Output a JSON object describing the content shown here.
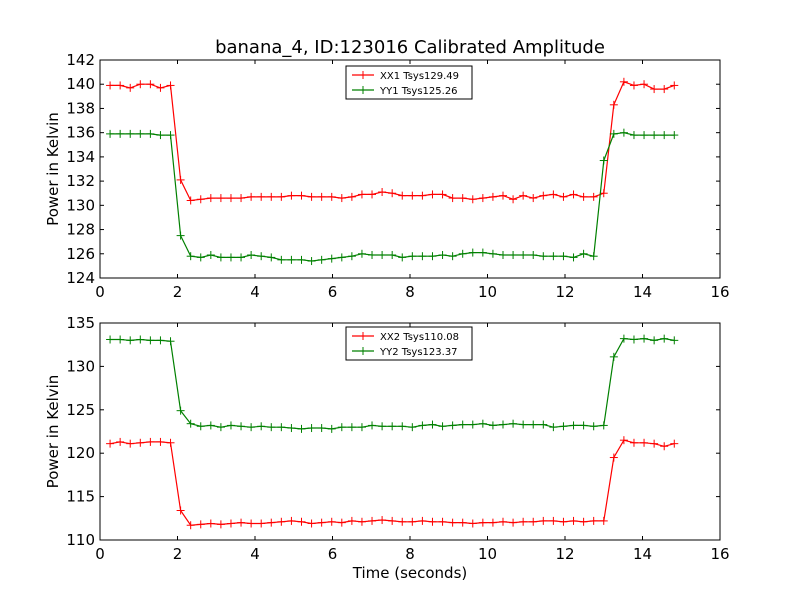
{
  "figure": {
    "title": "banana_4, ID:123016 Calibrated Amplitude",
    "xlabel": "Time (seconds)"
  },
  "chart_data": [
    {
      "type": "line",
      "ylabel": "Power in Kelvin",
      "xlim": [
        0,
        16
      ],
      "ylim": [
        124,
        142
      ],
      "xticks": [
        "0",
        "2",
        "4",
        "6",
        "8",
        "10",
        "12",
        "14",
        "16"
      ],
      "yticks": [
        "124",
        "126",
        "128",
        "130",
        "132",
        "134",
        "136",
        "138",
        "140",
        "142"
      ],
      "legend_position": "top-center",
      "x": [
        0.26,
        0.52,
        0.78,
        1.04,
        1.3,
        1.56,
        1.82,
        2.08,
        2.34,
        2.6,
        2.86,
        3.12,
        3.38,
        3.64,
        3.9,
        4.16,
        4.42,
        4.68,
        4.94,
        5.2,
        5.46,
        5.72,
        5.98,
        6.24,
        6.5,
        6.76,
        7.02,
        7.28,
        7.54,
        7.8,
        8.06,
        8.32,
        8.58,
        8.84,
        9.1,
        9.36,
        9.62,
        9.88,
        10.14,
        10.4,
        10.66,
        10.92,
        11.18,
        11.44,
        11.7,
        11.96,
        12.22,
        12.48,
        12.74,
        13.0,
        13.26,
        13.52,
        13.78,
        14.04,
        14.3,
        14.56,
        14.82
      ],
      "series": [
        {
          "name": "XX1 Tsys129.49",
          "color": "#ff0000",
          "values": [
            139.9,
            139.9,
            139.7,
            140.0,
            140.0,
            139.7,
            139.9,
            132.1,
            130.4,
            130.5,
            130.6,
            130.6,
            130.6,
            130.6,
            130.7,
            130.7,
            130.7,
            130.7,
            130.8,
            130.8,
            130.7,
            130.7,
            130.7,
            130.6,
            130.7,
            130.9,
            130.9,
            131.1,
            131.0,
            130.8,
            130.8,
            130.8,
            130.9,
            130.9,
            130.6,
            130.6,
            130.5,
            130.6,
            130.7,
            130.8,
            130.5,
            130.8,
            130.6,
            130.8,
            130.9,
            130.7,
            130.9,
            130.7,
            130.7,
            131.0,
            138.3,
            140.2,
            139.9,
            140.0,
            139.6,
            139.6,
            139.9
          ]
        },
        {
          "name": "YY1 Tsys125.26",
          "color": "#008000",
          "values": [
            135.9,
            135.9,
            135.9,
            135.9,
            135.9,
            135.8,
            135.8,
            127.5,
            125.8,
            125.7,
            125.9,
            125.7,
            125.7,
            125.7,
            125.9,
            125.8,
            125.7,
            125.5,
            125.5,
            125.5,
            125.4,
            125.5,
            125.6,
            125.7,
            125.8,
            126.0,
            125.9,
            125.9,
            125.9,
            125.7,
            125.8,
            125.8,
            125.8,
            125.9,
            125.8,
            126.0,
            126.1,
            126.1,
            126.0,
            125.9,
            125.9,
            125.9,
            125.9,
            125.8,
            125.8,
            125.8,
            125.7,
            126.0,
            125.8,
            133.7,
            135.9,
            136.0,
            135.8,
            135.8,
            135.8,
            135.8,
            135.8
          ]
        }
      ]
    },
    {
      "type": "line",
      "ylabel": "Power in Kelvin",
      "xlim": [
        0,
        16
      ],
      "ylim": [
        110,
        135
      ],
      "xticks": [
        "0",
        "2",
        "4",
        "6",
        "8",
        "10",
        "12",
        "14",
        "16"
      ],
      "yticks": [
        "110",
        "115",
        "120",
        "125",
        "130",
        "135"
      ],
      "legend_position": "top-center",
      "x": [
        0.26,
        0.52,
        0.78,
        1.04,
        1.3,
        1.56,
        1.82,
        2.08,
        2.34,
        2.6,
        2.86,
        3.12,
        3.38,
        3.64,
        3.9,
        4.16,
        4.42,
        4.68,
        4.94,
        5.2,
        5.46,
        5.72,
        5.98,
        6.24,
        6.5,
        6.76,
        7.02,
        7.28,
        7.54,
        7.8,
        8.06,
        8.32,
        8.58,
        8.84,
        9.1,
        9.36,
        9.62,
        9.88,
        10.14,
        10.4,
        10.66,
        10.92,
        11.18,
        11.44,
        11.7,
        11.96,
        12.22,
        12.48,
        12.74,
        13.0,
        13.26,
        13.52,
        13.78,
        14.04,
        14.3,
        14.56,
        14.82
      ],
      "series": [
        {
          "name": "XX2 Tsys110.08",
          "color": "#ff0000",
          "values": [
            121.1,
            121.3,
            121.1,
            121.2,
            121.3,
            121.3,
            121.2,
            113.4,
            111.7,
            111.8,
            111.9,
            111.8,
            111.9,
            112.0,
            111.9,
            111.9,
            112.0,
            112.1,
            112.2,
            112.1,
            111.9,
            112.0,
            112.1,
            112.0,
            112.2,
            112.1,
            112.2,
            112.3,
            112.2,
            112.1,
            112.1,
            112.2,
            112.1,
            112.1,
            112.0,
            112.0,
            111.9,
            112.0,
            112.0,
            112.1,
            112.0,
            112.1,
            112.1,
            112.2,
            112.2,
            112.1,
            112.2,
            112.1,
            112.2,
            112.2,
            119.5,
            121.5,
            121.2,
            121.2,
            121.1,
            120.8,
            121.1
          ]
        },
        {
          "name": "YY2 Tsys123.37",
          "color": "#008000",
          "values": [
            133.1,
            133.1,
            133.0,
            133.1,
            133.0,
            133.0,
            132.9,
            124.9,
            123.4,
            123.1,
            123.2,
            123.0,
            123.2,
            123.1,
            123.0,
            123.1,
            123.0,
            123.0,
            122.9,
            122.8,
            122.9,
            122.9,
            122.8,
            123.0,
            123.0,
            123.0,
            123.2,
            123.1,
            123.1,
            123.1,
            123.0,
            123.2,
            123.3,
            123.1,
            123.2,
            123.3,
            123.3,
            123.4,
            123.2,
            123.3,
            123.4,
            123.3,
            123.3,
            123.3,
            123.0,
            123.1,
            123.2,
            123.2,
            123.1,
            123.2,
            131.1,
            133.2,
            133.1,
            133.2,
            133.0,
            133.2,
            133.0
          ]
        }
      ]
    }
  ]
}
